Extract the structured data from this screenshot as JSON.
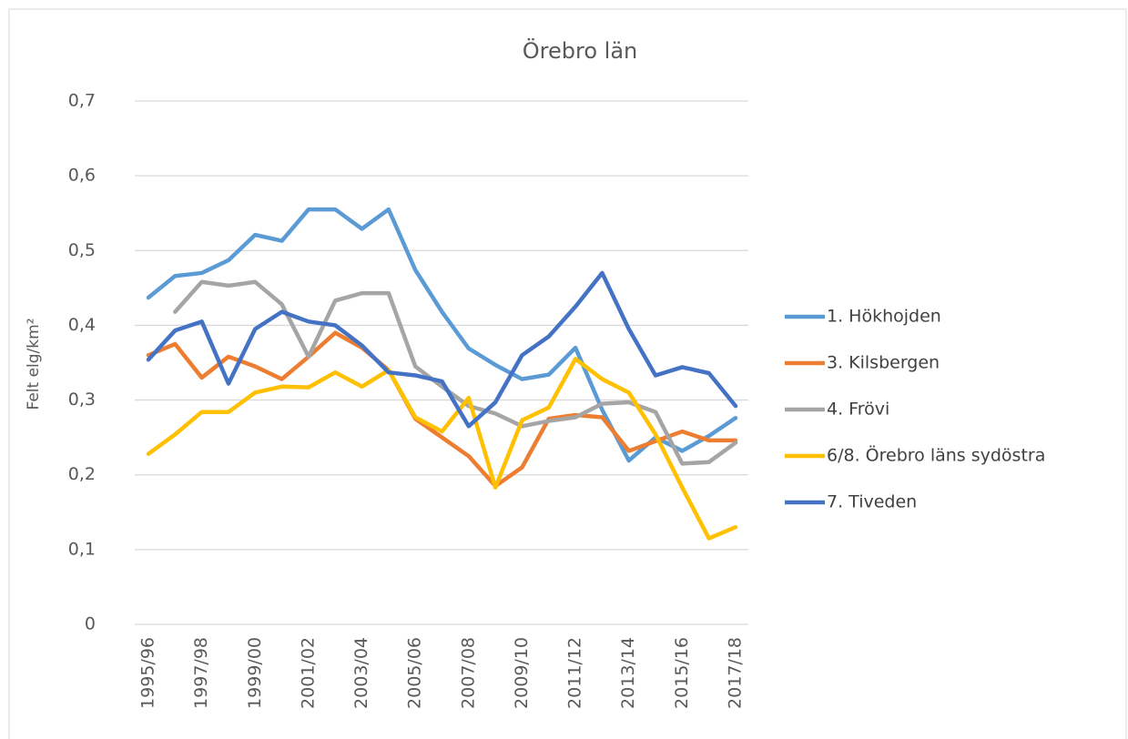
{
  "chart_data": {
    "type": "line",
    "title": "Örebro län",
    "y_label": "Felt elg/km²",
    "categories": [
      "1995/96",
      null,
      "1997/98",
      null,
      "1999/00",
      null,
      "2001/02",
      null,
      "2003/04",
      null,
      "2005/06",
      null,
      "2007/08",
      null,
      "2009/10",
      null,
      "2011/12",
      null,
      "2013/14",
      null,
      "2015/16",
      null,
      "2017/18"
    ],
    "series": [
      {
        "name": "1. Hökhojden",
        "color": "#5b9bd5",
        "values": [
          0.437,
          0.466,
          0.47,
          0.487,
          0.521,
          0.513,
          0.555,
          0.555,
          0.529,
          0.555,
          0.474,
          0.418,
          0.369,
          0.347,
          0.328,
          0.334,
          0.37,
          0.287,
          0.219,
          0.25,
          0.232,
          0.252,
          0.276
        ]
      },
      {
        "name": "3. Kilsbergen",
        "color": "#ed7d31",
        "values": [
          0.36,
          0.375,
          0.33,
          0.358,
          0.345,
          0.328,
          0.358,
          0.39,
          0.37,
          0.34,
          0.275,
          0.25,
          0.225,
          0.185,
          0.21,
          0.275,
          0.28,
          0.277,
          0.232,
          0.245,
          0.258,
          0.246,
          0.246
        ]
      },
      {
        "name": "4. Frövi",
        "color": "#a5a5a5",
        "values": [
          null,
          0.418,
          0.458,
          0.453,
          0.458,
          0.428,
          0.358,
          0.433,
          0.443,
          0.443,
          0.345,
          0.318,
          0.292,
          0.282,
          0.265,
          0.272,
          0.277,
          0.295,
          0.297,
          0.284,
          0.215,
          0.217,
          0.243
        ]
      },
      {
        "name": "6/8. Örebro läns sydöstra",
        "color": "#ffc000",
        "values": [
          0.228,
          0.254,
          0.284,
          0.284,
          0.31,
          0.318,
          0.317,
          0.337,
          0.318,
          0.34,
          0.277,
          0.258,
          0.303,
          0.183,
          0.273,
          0.29,
          0.355,
          0.328,
          0.31,
          0.254,
          0.183,
          0.115,
          0.13
        ]
      },
      {
        "name": "7. Tiveden",
        "color": "#4472c4",
        "values": [
          0.354,
          0.393,
          0.405,
          0.322,
          0.395,
          0.418,
          0.405,
          0.4,
          0.373,
          0.337,
          0.333,
          0.325,
          0.265,
          0.297,
          0.36,
          0.385,
          0.425,
          0.47,
          0.395,
          0.333,
          0.344,
          0.336,
          0.292
        ]
      }
    ],
    "ylim": [
      0,
      0.7
    ],
    "yticks": [
      0,
      {
        "value": 0.1,
        "label": "0,1"
      },
      {
        "value": 0.2,
        "label": "0,2"
      },
      {
        "value": 0.3,
        "label": "0,3"
      },
      {
        "value": 0.4,
        "label": "0,4"
      },
      {
        "value": 0.5,
        "label": "0,5"
      },
      {
        "value": 0.6,
        "label": "0,6"
      },
      {
        "value": 0.7,
        "label": "0,7"
      }
    ],
    "grid": true,
    "legend": "right"
  }
}
